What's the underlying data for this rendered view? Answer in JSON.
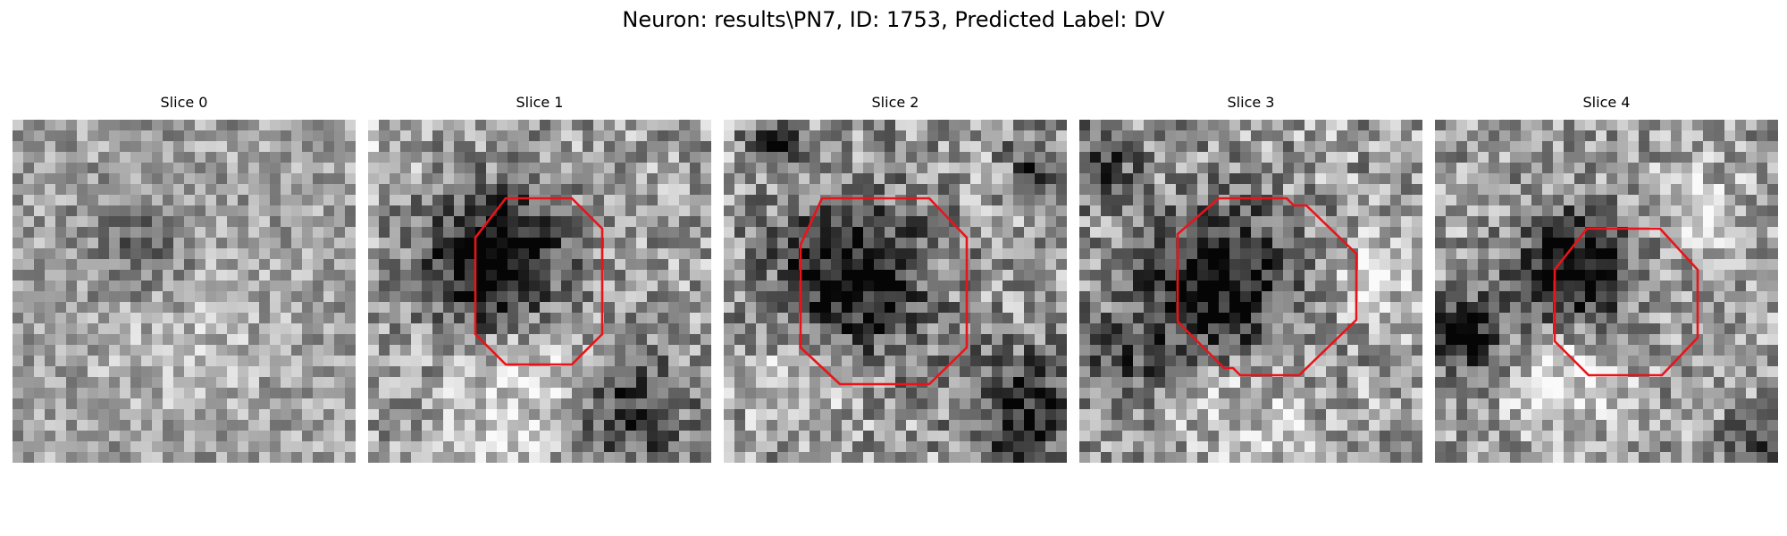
{
  "figure": {
    "title": "Neuron: results\\PN7, ID: 1753, Predicted Label: DV"
  },
  "slices": [
    {
      "label": "Slice 0",
      "has_outline": false
    },
    {
      "label": "Slice 1",
      "has_outline": true
    },
    {
      "label": "Slice 2",
      "has_outline": true
    },
    {
      "label": "Slice 3",
      "has_outline": true
    },
    {
      "label": "Slice 4",
      "has_outline": true
    }
  ],
  "colors": {
    "outline": "#e8141a",
    "background": "#ffffff"
  }
}
